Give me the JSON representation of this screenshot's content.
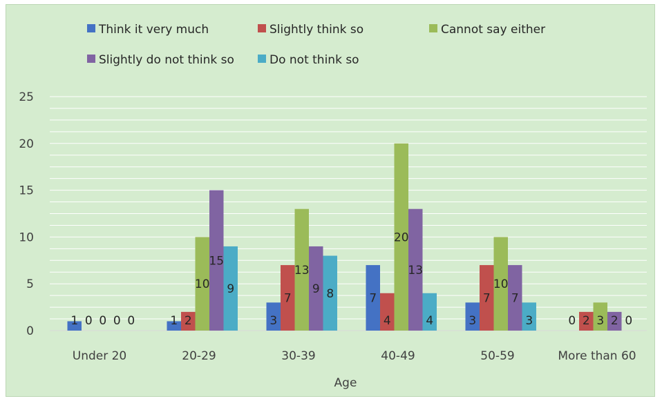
{
  "chart_data": {
    "type": "bar",
    "title": "",
    "xlabel": "Age",
    "ylabel": "",
    "ylim": [
      0,
      25
    ],
    "yticks": [
      0,
      5,
      10,
      15,
      20,
      25
    ],
    "grid": true,
    "legend_position": "top",
    "categories": [
      "Under 20",
      "20-29",
      "30-39",
      "40-49",
      "50-59",
      "More than 60"
    ],
    "series": [
      {
        "name": "Think it very much",
        "color": "#4472c4",
        "values": [
          1,
          1,
          3,
          7,
          3,
          0
        ]
      },
      {
        "name": "Slightly think so",
        "color": "#c0504d",
        "values": [
          0,
          2,
          7,
          4,
          7,
          2
        ]
      },
      {
        "name": "Cannot say either",
        "color": "#9bbb59",
        "values": [
          0,
          10,
          13,
          20,
          10,
          3
        ]
      },
      {
        "name": "Slightly do not think so",
        "color": "#8064a2",
        "values": [
          0,
          15,
          9,
          13,
          7,
          2
        ]
      },
      {
        "name": "Do not think so",
        "color": "#4bacc6",
        "values": [
          0,
          9,
          8,
          4,
          3,
          0
        ]
      }
    ]
  }
}
